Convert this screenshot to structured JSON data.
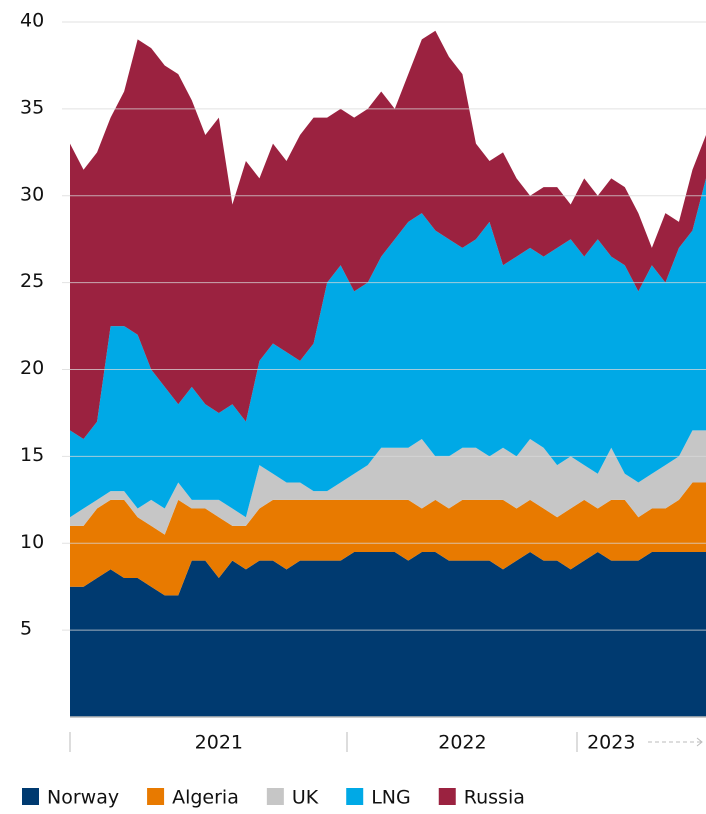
{
  "chart_data": {
    "type": "area",
    "stacked": true,
    "categories": [
      null,
      null,
      null,
      null,
      null,
      null,
      null,
      null,
      null,
      null,
      null,
      "2021",
      null,
      null,
      null,
      null,
      null,
      null,
      null,
      null,
      null,
      null,
      null,
      null,
      null,
      null,
      null,
      null,
      null,
      "2022",
      null,
      null,
      null,
      null,
      null,
      null,
      null,
      null,
      null,
      null,
      "2023",
      null,
      null,
      null,
      null,
      null,
      null,
      null
    ],
    "ylim": [
      0,
      40
    ],
    "yticks": [
      5,
      10,
      15,
      20,
      25,
      30,
      35,
      40
    ],
    "grid": true,
    "legend": "bottom",
    "series": [
      {
        "name": "Norway",
        "color": "#003a70",
        "values": [
          7.5,
          7.5,
          8,
          8.5,
          8,
          8,
          7.5,
          7,
          7,
          9,
          9,
          8,
          9,
          8.5,
          9,
          9,
          8.5,
          9,
          9,
          9,
          9,
          9.5,
          9.5,
          9.5,
          9.5,
          9,
          9.5,
          9.5,
          9,
          9,
          9,
          9,
          8.5,
          9,
          9.5,
          9,
          9,
          8.5,
          9,
          9.5,
          9,
          9,
          9,
          9.5,
          9.5,
          9.5,
          9.5,
          9.5
        ]
      },
      {
        "name": "Algeria",
        "color": "#e87a00",
        "values": [
          3.5,
          3.5,
          4,
          4,
          4.5,
          3.5,
          3.5,
          3.5,
          5.5,
          3,
          3,
          3.5,
          2,
          2.5,
          3,
          3.5,
          4,
          3.5,
          3.5,
          3.5,
          3.5,
          3,
          3,
          3,
          3,
          3.5,
          2.5,
          3,
          3,
          3.5,
          3.5,
          3.5,
          4,
          3,
          3,
          3,
          2.5,
          3.5,
          3.5,
          2.5,
          3.5,
          3.5,
          2.5,
          2.5,
          2.5,
          3,
          4,
          4
        ]
      },
      {
        "name": "UK",
        "color": "#c6c6c6",
        "values": [
          0.5,
          1,
          0.5,
          0.5,
          0.5,
          0.5,
          1.5,
          1.5,
          1,
          0.5,
          0.5,
          1,
          1,
          0.5,
          2.5,
          1.5,
          1,
          1,
          0.5,
          0.5,
          1,
          1.5,
          2,
          3,
          3,
          3,
          4,
          2.5,
          3,
          3,
          3,
          2.5,
          3,
          3,
          3.5,
          3.5,
          3,
          3,
          2,
          2,
          3,
          1.5,
          2,
          2,
          2.5,
          2.5,
          3,
          3
        ]
      },
      {
        "name": "LNG",
        "color": "#00a9e6",
        "values": [
          5,
          4,
          4.5,
          9.5,
          9.5,
          10,
          7.5,
          7,
          4.5,
          6.5,
          5.5,
          5,
          6,
          5.5,
          6,
          7.5,
          7.5,
          7,
          8.5,
          12,
          12.5,
          10.5,
          10.5,
          11,
          12,
          13,
          13,
          13,
          12.5,
          11.5,
          12,
          13.5,
          10.5,
          11.5,
          11,
          11,
          12.5,
          12.5,
          12,
          13.5,
          11,
          12,
          11,
          12,
          10.5,
          12,
          11.5,
          14.5
        ]
      },
      {
        "name": "Russia",
        "color": "#9b2240",
        "values": [
          16.5,
          15.5,
          15.5,
          12,
          13.5,
          17,
          18.5,
          18.5,
          19,
          16.5,
          15.5,
          17,
          11.5,
          15,
          10.5,
          11.5,
          11,
          13,
          13,
          9.5,
          9,
          10,
          10,
          9.5,
          7.5,
          8.5,
          10,
          11.5,
          10.5,
          10,
          5.5,
          3.5,
          6.5,
          4.5,
          3,
          4,
          3.5,
          2,
          4.5,
          2.5,
          4.5,
          4.5,
          4.5,
          1,
          4,
          1.5,
          3.5,
          2.5
        ]
      }
    ]
  }
}
